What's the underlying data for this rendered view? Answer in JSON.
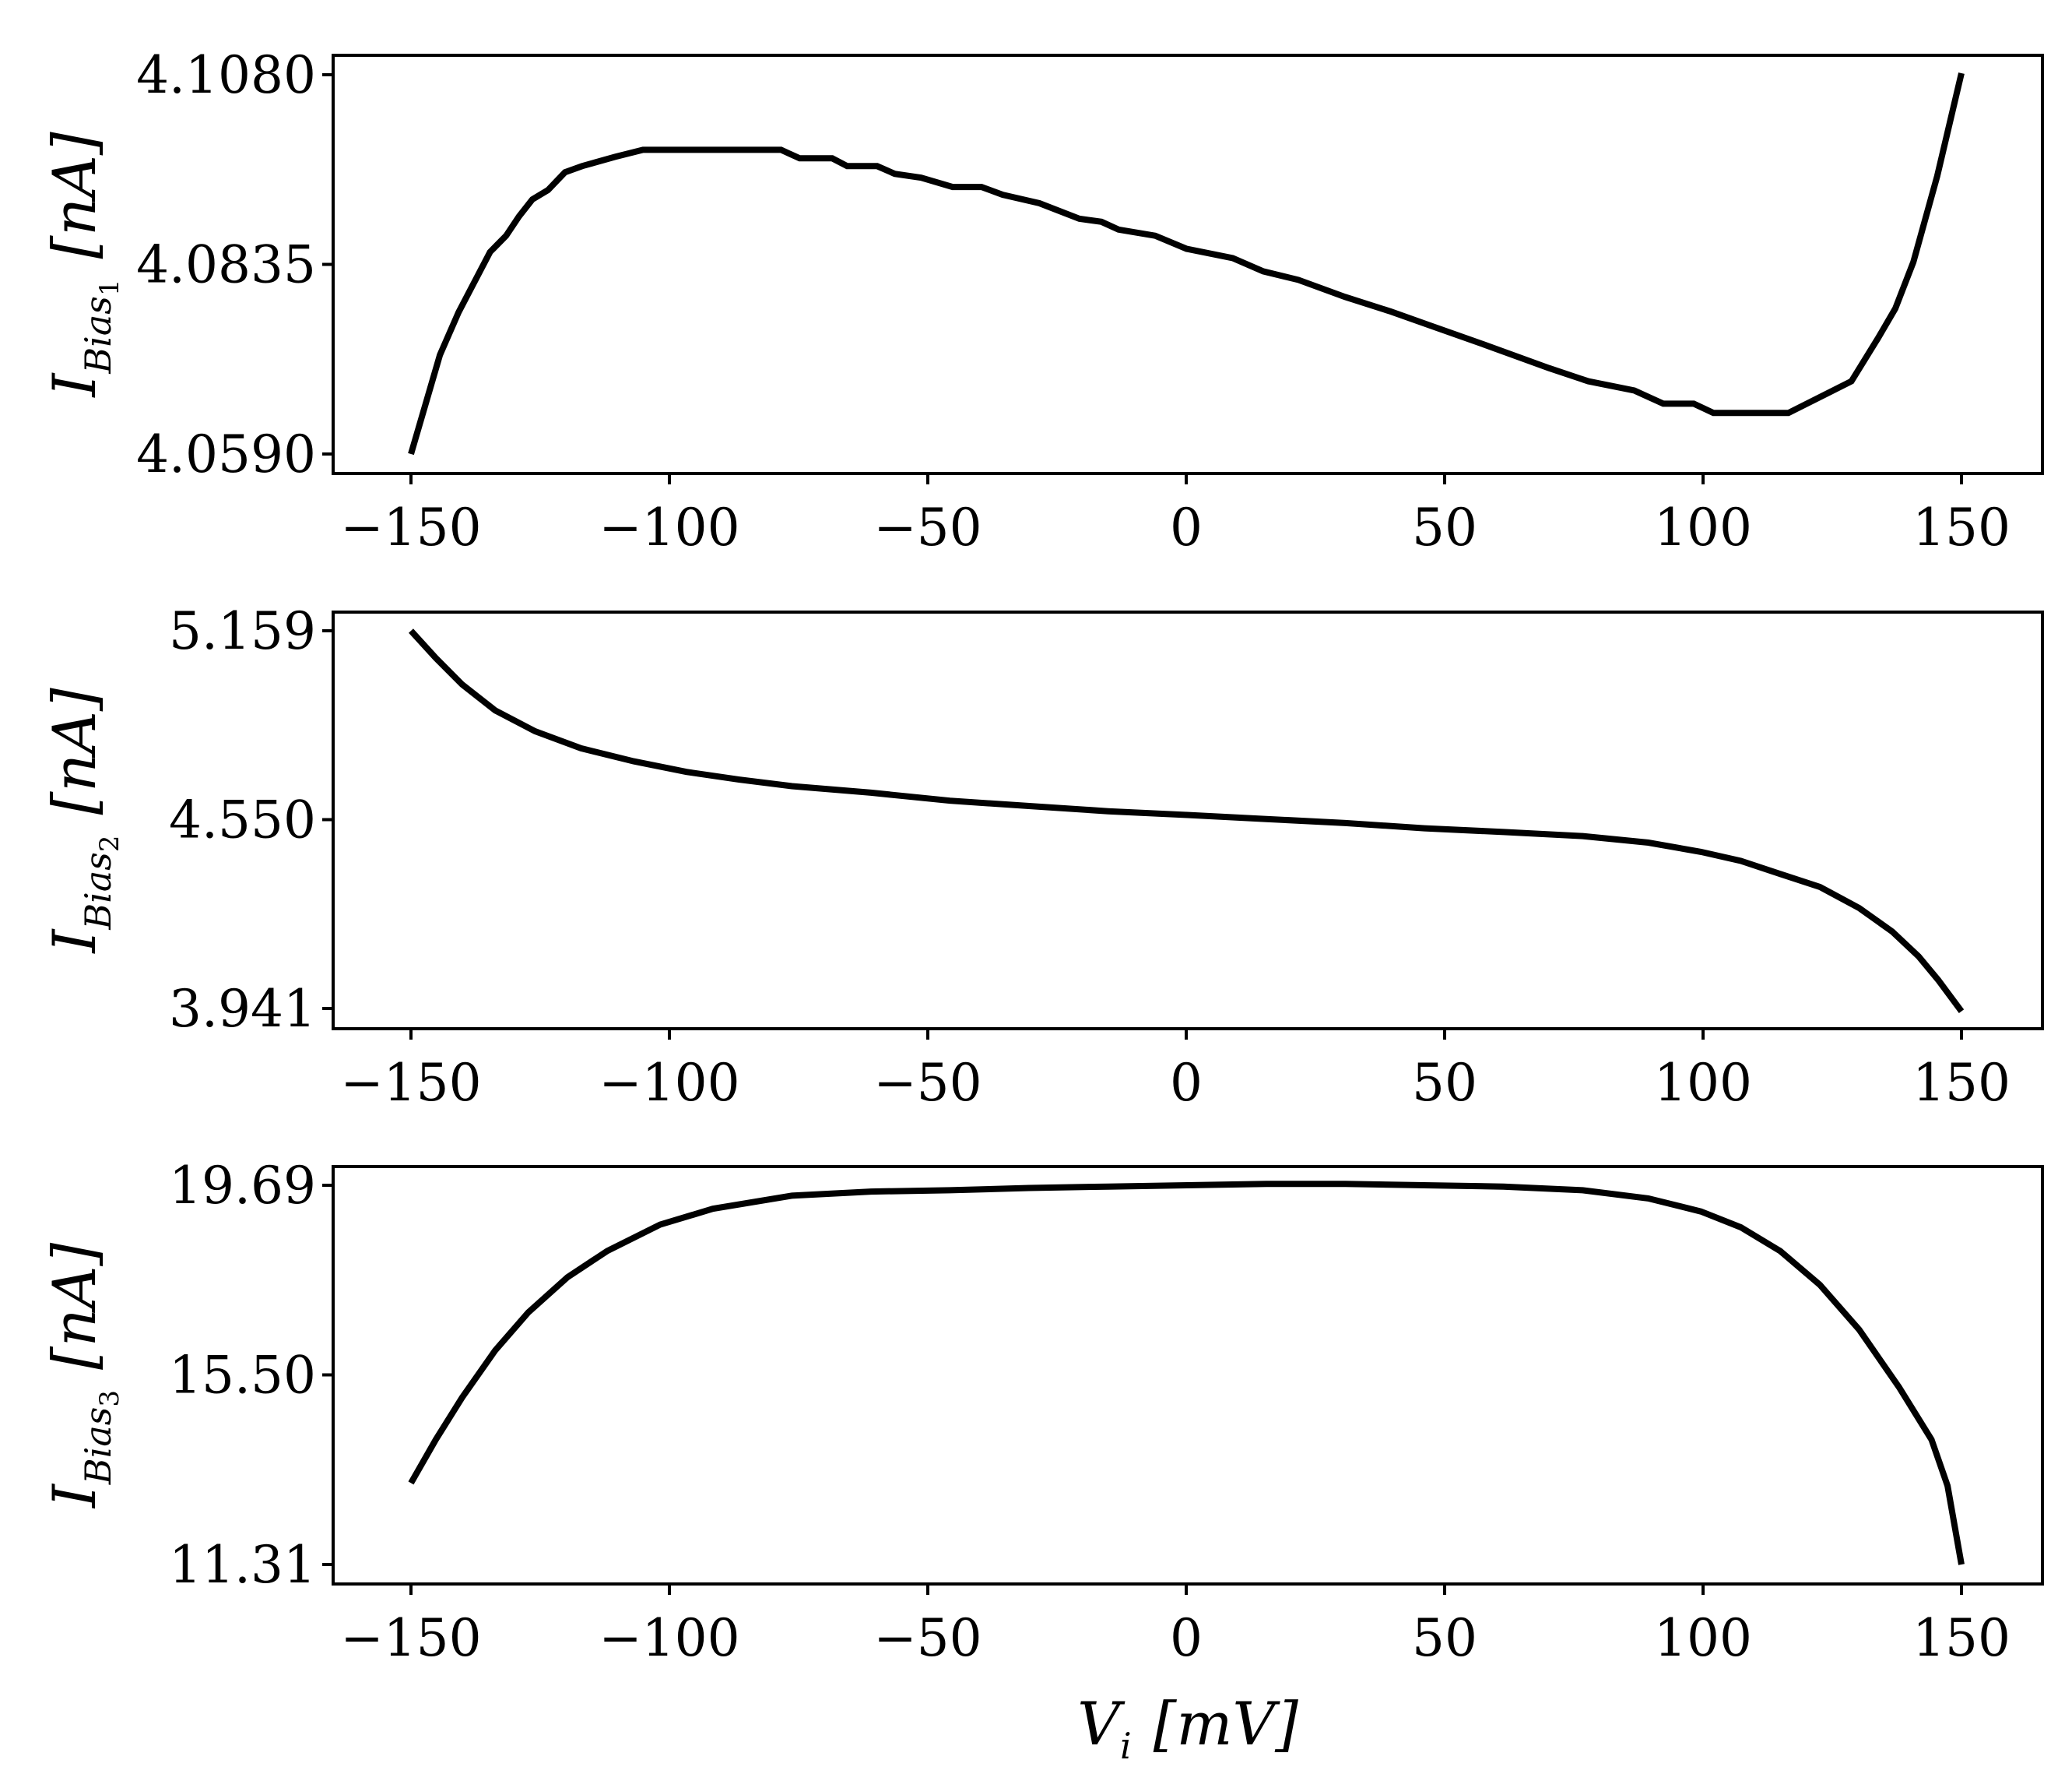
{
  "figure": {
    "xlabel": "V_i [mV]",
    "xlabel_main": "V",
    "xlabel_sub": "i",
    "xlabel_unit": "[mV]",
    "line_color": "#000000",
    "x_ticks": [
      "−150",
      "−100",
      "−50",
      "0",
      "50",
      "100",
      "150"
    ]
  },
  "chart_data": [
    {
      "type": "line",
      "title": "",
      "xlabel": "",
      "ylabel": "I_Bias1 [nA]",
      "ylabel_main": "I",
      "ylabel_sub": "Bias",
      "ylabel_subnum": "1",
      "ylabel_unit": "[nA]",
      "xlim": [
        -165,
        165
      ],
      "ylim": [
        4.0577,
        4.1094
      ],
      "x_ticks": [
        -150,
        -100,
        -50,
        0,
        50,
        100,
        150
      ],
      "y_ticks": [
        4.059,
        4.0835,
        4.108
      ],
      "y_tick_labels": [
        "4.0590",
        "4.0835",
        "4.1080"
      ],
      "grid": false,
      "x": [
        -150,
        -144.4,
        -140.8,
        -134.7,
        -131.6,
        -129.1,
        -126.5,
        -123.5,
        -120.2,
        -116.9,
        -110.5,
        -105.1,
        -78.4,
        -74.8,
        -68.5,
        -65.6,
        -59.8,
        -56.4,
        -51.3,
        -45.2,
        -39.6,
        -35.5,
        -28.4,
        -20.7,
        -16.4,
        -13.1,
        -6.0,
        0.1,
        9.0,
        14.9,
        21.7,
        30.7,
        39.6,
        47.2,
        57.4,
        70.2,
        77.8,
        86.7,
        92.3,
        98.2,
        102.0,
        116.5,
        128.7,
        133.8,
        137.2,
        140.7,
        145.3,
        150.0
      ],
      "values": [
        4.059,
        4.0718,
        4.0773,
        4.0851,
        4.0872,
        4.0897,
        4.0919,
        4.0931,
        4.0954,
        4.0962,
        4.0974,
        4.0983,
        4.0983,
        4.0972,
        4.0972,
        4.0962,
        4.0962,
        4.0952,
        4.0947,
        4.0935,
        4.0935,
        4.0925,
        4.0914,
        4.0894,
        4.089,
        4.088,
        4.0872,
        4.0855,
        4.0843,
        4.0826,
        4.0815,
        4.0793,
        4.0774,
        4.0756,
        4.0732,
        4.0701,
        4.0684,
        4.0672,
        4.0655,
        4.0655,
        4.0643,
        4.0643,
        4.0684,
        4.0739,
        4.0778,
        4.0838,
        4.0949,
        4.1082
      ]
    },
    {
      "type": "line",
      "title": "",
      "xlabel": "",
      "ylabel": "I_Bias2 [nA]",
      "ylabel_main": "I",
      "ylabel_sub": "Bias",
      "ylabel_subnum": "2",
      "ylabel_unit": "[nA]",
      "xlim": [
        -165,
        165
      ],
      "ylim": [
        3.886,
        5.213
      ],
      "x_ticks": [
        -150,
        -100,
        -50,
        0,
        50,
        100,
        150
      ],
      "y_ticks": [
        3.941,
        4.55,
        5.159
      ],
      "y_tick_labels": [
        "3.941",
        "4.550",
        "5.159"
      ],
      "grid": false,
      "x": [
        -150,
        -145.2,
        -140.1,
        -133.7,
        -126.0,
        -117.1,
        -106.9,
        -96.7,
        -86.5,
        -76.3,
        -61.0,
        -45.7,
        -30.4,
        -15.1,
        0.2,
        15.5,
        30.8,
        46.1,
        61.4,
        76.7,
        89.4,
        99.6,
        107.3,
        114.9,
        122.6,
        130.2,
        136.6,
        141.7,
        145.5,
        150.0
      ],
      "values": [
        5.159,
        5.071,
        4.986,
        4.902,
        4.835,
        4.78,
        4.738,
        4.704,
        4.679,
        4.658,
        4.637,
        4.611,
        4.594,
        4.577,
        4.565,
        4.552,
        4.539,
        4.522,
        4.51,
        4.497,
        4.476,
        4.446,
        4.417,
        4.375,
        4.333,
        4.265,
        4.189,
        4.109,
        4.033,
        3.932
      ]
    },
    {
      "type": "line",
      "title": "",
      "xlabel": "V_i [mV]",
      "ylabel": "I_Bias3 [nA]",
      "ylabel_main": "I",
      "ylabel_sub": "Bias",
      "ylabel_subnum": "3",
      "ylabel_unit": "[nA]",
      "xlim": [
        -165,
        165
      ],
      "ylim": [
        10.52,
        20.48
      ],
      "x_ticks": [
        -150,
        -100,
        -50,
        0,
        50,
        100,
        150
      ],
      "y_ticks": [
        11.31,
        15.5,
        19.69
      ],
      "y_tick_labels": [
        "11.31",
        "15.50",
        "19.69"
      ],
      "grid": false,
      "x": [
        -150,
        -145.2,
        -140.1,
        -133.7,
        -127.3,
        -119.7,
        -112.0,
        -101.8,
        -91.6,
        -76.3,
        -61.0,
        -45.7,
        -30.4,
        -15.1,
        0.2,
        15.5,
        30.8,
        46.1,
        61.4,
        76.7,
        89.4,
        99.6,
        107.3,
        114.9,
        122.6,
        130.2,
        137.9,
        144.2,
        147.3,
        150.0
      ],
      "values": [
        13.11,
        14.07,
        15.0,
        16.04,
        16.88,
        17.66,
        18.24,
        18.82,
        19.17,
        19.46,
        19.55,
        19.58,
        19.63,
        19.66,
        19.69,
        19.72,
        19.72,
        19.69,
        19.66,
        19.58,
        19.4,
        19.11,
        18.76,
        18.24,
        17.49,
        16.5,
        15.23,
        14.07,
        13.05,
        11.31
      ]
    }
  ]
}
